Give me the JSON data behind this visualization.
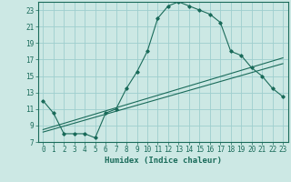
{
  "xlabel": "Humidex (Indice chaleur)",
  "bg_color": "#cce8e4",
  "grid_color": "#9ecece",
  "line_color": "#1a6b5a",
  "xlim": [
    -0.5,
    23.5
  ],
  "ylim": [
    7,
    24
  ],
  "xticks": [
    0,
    1,
    2,
    3,
    4,
    5,
    6,
    7,
    8,
    9,
    10,
    11,
    12,
    13,
    14,
    15,
    16,
    17,
    18,
    19,
    20,
    21,
    22,
    23
  ],
  "yticks": [
    7,
    9,
    11,
    13,
    15,
    17,
    19,
    21,
    23
  ],
  "curve1_x": [
    0,
    1,
    2,
    3,
    4,
    5,
    6,
    7,
    8,
    9,
    10,
    11,
    12,
    13,
    14,
    15,
    16,
    17,
    18,
    19,
    20,
    21,
    22,
    23
  ],
  "curve1_y": [
    12.0,
    10.5,
    8.0,
    8.0,
    8.0,
    7.5,
    10.5,
    11.0,
    13.5,
    15.5,
    18.0,
    22.0,
    23.5,
    24.0,
    23.5,
    23.0,
    22.5,
    21.5,
    18.0,
    17.5,
    16.0,
    15.0,
    13.5,
    12.5
  ],
  "line2_x": [
    0,
    23
  ],
  "line2_y": [
    8.5,
    17.2
  ],
  "line3_x": [
    0,
    23
  ],
  "line3_y": [
    8.2,
    16.5
  ],
  "tick_fontsize": 5.5,
  "xlabel_fontsize": 6.5
}
